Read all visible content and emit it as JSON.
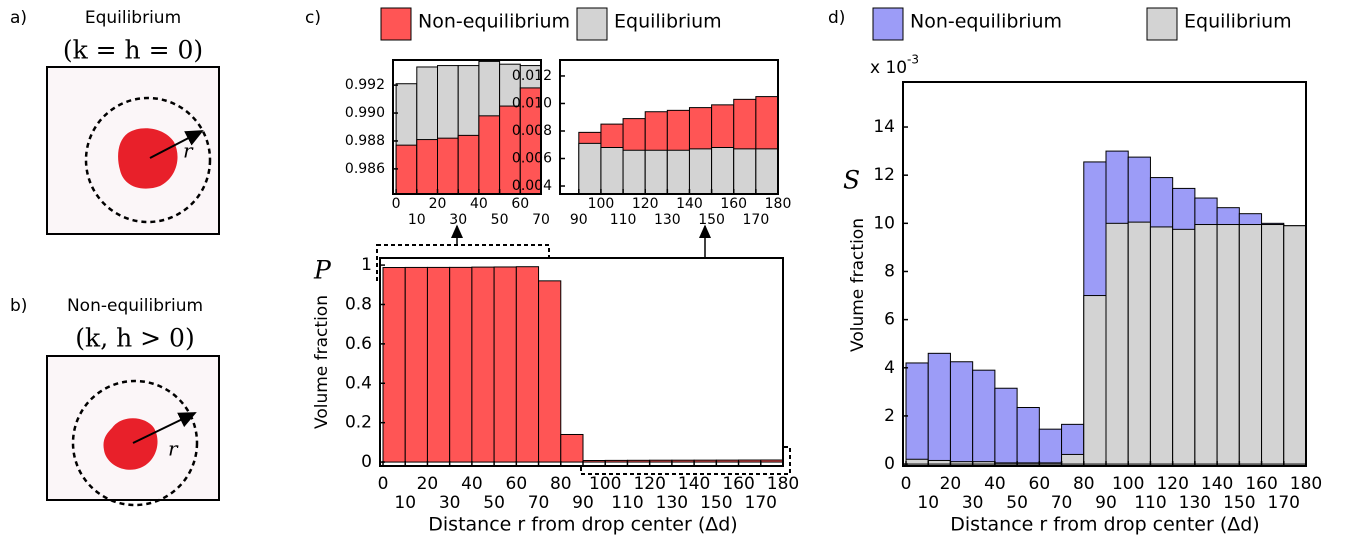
{
  "panel_a": {
    "label": "a)",
    "title": "Equilibrium",
    "condition": "(k = h = 0)",
    "radius_label": "r"
  },
  "panel_b": {
    "label": "b)",
    "title": "Non-equilibrium",
    "condition": "(k, h > 0)",
    "radius_label": "r"
  },
  "chart_data": [
    {
      "type": "histogram",
      "panel_label": "c)",
      "symbol": "P",
      "y_label": "Volume fraction",
      "x_label": "Distance r from drop center (Δd)",
      "legend": [
        {
          "name": "Non-equilibrium",
          "color": "#ff5555"
        },
        {
          "name": "Equilibrium",
          "color": "#d3d3d3"
        }
      ],
      "bins": [
        0,
        10,
        20,
        30,
        40,
        50,
        60,
        70,
        80,
        90,
        100,
        110,
        120,
        130,
        140,
        150,
        160,
        170,
        180
      ],
      "values": [
        0.9877,
        0.9881,
        0.9882,
        0.9884,
        0.9898,
        0.9905,
        0.9918,
        0.92,
        0.14,
        0.0079,
        0.0085,
        0.0089,
        0.0094,
        0.0095,
        0.0097,
        0.0099,
        0.0103,
        0.0105
      ],
      "color": "#ff5555",
      "xlim": [
        -1.35,
        180
      ],
      "ylim": [
        -0.02,
        1.036
      ],
      "xticks": [
        0,
        10,
        20,
        30,
        40,
        50,
        60,
        70,
        80,
        90,
        100,
        110,
        120,
        130,
        140,
        150,
        160,
        170,
        180
      ],
      "yticks": [
        0,
        0.2,
        0.4,
        0.6,
        0.8,
        1
      ],
      "insets": [
        {
          "type": "histogram",
          "bins": [
            0,
            10,
            20,
            30,
            40,
            50,
            60,
            70
          ],
          "series": [
            {
              "color": "#ff5555",
              "values": [
                0.9877,
                0.9881,
                0.9882,
                0.9884,
                0.9898,
                0.9905,
                0.9918
              ]
            },
            {
              "color": "#d3d3d3",
              "values": [
                0.9921,
                0.9933,
                0.9934,
                0.9934,
                0.9937,
                0.9935,
                0.9934
              ]
            }
          ],
          "xlim": [
            -1.5,
            70
          ],
          "ylim": [
            0.9842,
            0.9938
          ],
          "xticks": [
            0,
            10,
            20,
            30,
            40,
            50,
            60,
            70
          ],
          "yticks": [
            0.986,
            0.988,
            {
              "value": 0.99,
              "label": "0.990"
            },
            0.992
          ]
        },
        {
          "type": "histogram",
          "bins": [
            90,
            100,
            110,
            120,
            130,
            140,
            150,
            160,
            170,
            180
          ],
          "series": [
            {
              "color": "#ff5555",
              "values": [
                0.0079,
                0.0085,
                0.0089,
                0.0094,
                0.0095,
                0.0097,
                0.0099,
                0.0103,
                0.0105
              ]
            },
            {
              "color": "#d3d3d3",
              "values": [
                0.0071,
                0.0068,
                0.0066,
                0.0066,
                0.0066,
                0.0067,
                0.0068,
                0.0067,
                0.0067
              ]
            }
          ],
          "xlim": [
            81.5,
            180
          ],
          "ylim": [
            0.00342,
            0.01316
          ],
          "xticks": [
            90,
            100,
            110,
            120,
            130,
            140,
            150,
            160,
            170,
            180
          ],
          "yticks": [
            0.004,
            0.006,
            0.008,
            {
              "value": 0.01,
              "label": "0.010"
            },
            0.012
          ]
        }
      ]
    },
    {
      "type": "histogram",
      "panel_label": "d)",
      "symbol": "S",
      "y_label": "Volume fraction",
      "x_label": "Distance r from drop center (Δd)",
      "multiplier": "x 10",
      "multiplier_exponent": "-3",
      "bins": [
        0,
        10,
        20,
        30,
        40,
        50,
        60,
        70,
        80,
        90,
        100,
        110,
        120,
        130,
        140,
        150,
        160,
        170,
        180
      ],
      "series": [
        {
          "name": "Non-equilibrium",
          "color": "#9c9cf7",
          "values": [
            4.2,
            4.6,
            4.25,
            3.9,
            3.15,
            2.35,
            1.45,
            1.65,
            12.55,
            13.0,
            12.75,
            11.9,
            11.45,
            11.05,
            10.65,
            10.4,
            10.0,
            9.9
          ]
        },
        {
          "name": "Equilibrium",
          "color": "#d3d3d3",
          "values": [
            0.2,
            0.15,
            0.1,
            0.1,
            0.05,
            0.05,
            0.05,
            0.4,
            7.0,
            10.0,
            10.05,
            9.85,
            9.75,
            9.95,
            9.95,
            9.95,
            9.95,
            9.9
          ]
        }
      ],
      "xlim": [
        -1.35,
        180
      ],
      "ylim": [
        -0.08,
        15.87
      ],
      "xticks": [
        0,
        10,
        20,
        30,
        40,
        50,
        60,
        70,
        80,
        90,
        100,
        110,
        120,
        130,
        140,
        150,
        160,
        170,
        180
      ],
      "yticks": [
        0,
        2,
        4,
        6,
        8,
        10,
        12,
        14
      ]
    }
  ]
}
